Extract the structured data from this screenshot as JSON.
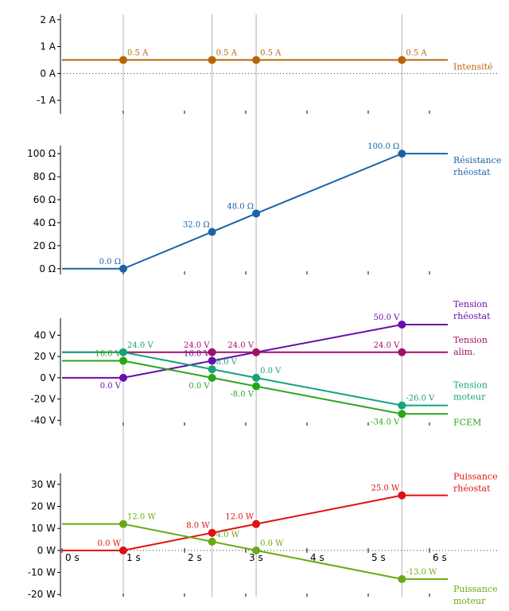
{
  "chart_data": [
    {
      "type": "line",
      "title": "",
      "xlabel": "",
      "ylabel": "",
      "ylim": [
        -1.5,
        2.2
      ],
      "yticks": [
        {
          "v": 2,
          "t": "2 A"
        },
        {
          "v": 1,
          "t": "1 A"
        },
        {
          "v": 0,
          "t": "0 A"
        },
        {
          "v": -1,
          "t": "-1 A"
        }
      ],
      "grid_y_zero": true,
      "series": [
        {
          "name_lines": [
            "Intensité"
          ],
          "color": "#b8650a",
          "x": [
            0,
            1,
            2.45,
            3.17,
            5.55,
            6.3
          ],
          "y": [
            0.5,
            0.5,
            0.5,
            0.5,
            0.5,
            0.5
          ],
          "points": [
            1,
            2,
            3,
            4
          ],
          "labels": [
            {
              "i": 1,
              "text": "0.5 A",
              "pos": "ar"
            },
            {
              "i": 2,
              "text": "0.5 A",
              "pos": "ar"
            },
            {
              "i": 3,
              "text": "0.5 A",
              "pos": "ar"
            },
            {
              "i": 4,
              "text": "0.5 A",
              "pos": "ar"
            }
          ]
        }
      ]
    },
    {
      "type": "line",
      "title": "",
      "xlabel": "",
      "ylabel": "",
      "ylim": [
        -5,
        107
      ],
      "yticks": [
        {
          "v": 100,
          "t": "100 Ω"
        },
        {
          "v": 80,
          "t": "80 Ω"
        },
        {
          "v": 60,
          "t": "60 Ω"
        },
        {
          "v": 40,
          "t": "40 Ω"
        },
        {
          "v": 20,
          "t": "20 Ω"
        },
        {
          "v": 0,
          "t": "0 Ω"
        }
      ],
      "grid_y_zero": false,
      "series": [
        {
          "name_lines": [
            "Résistance",
            "rhéostat"
          ],
          "color": "#1a63a8",
          "x": [
            0,
            1,
            2.45,
            3.17,
            5.55,
            6.3
          ],
          "y": [
            0,
            0,
            32,
            48,
            100,
            100
          ],
          "points": [
            1,
            2,
            3,
            4
          ],
          "labels": [
            {
              "i": 1,
              "text": "0.0 Ω",
              "pos": "al"
            },
            {
              "i": 2,
              "text": "32.0 Ω",
              "pos": "al"
            },
            {
              "i": 3,
              "text": "48.0 Ω",
              "pos": "al"
            },
            {
              "i": 4,
              "text": "100.0 Ω",
              "pos": "al"
            }
          ]
        }
      ]
    },
    {
      "type": "line",
      "title": "",
      "xlabel": "",
      "ylabel": "",
      "ylim": [
        -45,
        56
      ],
      "yticks": [
        {
          "v": 40,
          "t": "40 V"
        },
        {
          "v": 20,
          "t": "20 V"
        },
        {
          "v": 0,
          "t": "0 V"
        },
        {
          "v": -20,
          "t": "-20 V"
        },
        {
          "v": -40,
          "t": "-40 V"
        }
      ],
      "grid_y_zero": false,
      "series": [
        {
          "name_lines": [
            "Tension",
            "rhéostat"
          ],
          "color": "#6a0dad",
          "x": [
            0,
            1,
            2.45,
            3.17,
            5.55,
            6.3
          ],
          "y": [
            0,
            0,
            16,
            24,
            50,
            50
          ],
          "points": [
            1,
            2,
            4
          ],
          "labels": [
            {
              "i": 1,
              "text": "0.0 V",
              "pos": "bl"
            },
            {
              "i": 2,
              "text": "16.0 V",
              "pos": "al"
            },
            {
              "i": 4,
              "text": "50.0 V",
              "pos": "al"
            }
          ]
        },
        {
          "name_lines": [
            "Tension",
            "alim."
          ],
          "color": "#a0106a",
          "x": [
            0,
            1,
            2.45,
            3.17,
            5.55,
            6.3
          ],
          "y": [
            24,
            24,
            24,
            24,
            24,
            24
          ],
          "points": [
            2,
            3,
            4
          ],
          "labels": [
            {
              "i": 2,
              "text": "24.0 V",
              "pos": "al"
            },
            {
              "i": 3,
              "text": "24.0 V",
              "pos": "al"
            },
            {
              "i": 4,
              "text": "24.0 V",
              "pos": "al"
            }
          ]
        },
        {
          "name_lines": [
            "Tension",
            "moteur"
          ],
          "color": "#16a37a",
          "x": [
            0,
            1,
            2.45,
            3.17,
            5.55,
            6.3
          ],
          "y": [
            24,
            24,
            8,
            0,
            -26,
            -26
          ],
          "points": [
            1,
            2,
            3,
            4
          ],
          "labels": [
            {
              "i": 1,
              "text": "24.0 V",
              "pos": "ar"
            },
            {
              "i": 2,
              "text": "8.0 V",
              "pos": "ar"
            },
            {
              "i": 3,
              "text": "0.0 V",
              "pos": "ar"
            },
            {
              "i": 4,
              "text": "-26.0 V",
              "pos": "ar"
            }
          ]
        },
        {
          "name_lines": [
            "FCEM"
          ],
          "color": "#2aa51a",
          "x": [
            0,
            1,
            2.45,
            3.17,
            5.55,
            6.3
          ],
          "y": [
            16,
            16,
            0,
            -8,
            -34,
            -34
          ],
          "points": [
            1,
            2,
            3,
            4
          ],
          "labels": [
            {
              "i": 1,
              "text": "16.0 V",
              "pos": "al"
            },
            {
              "i": 2,
              "text": "0.0 V",
              "pos": "bl"
            },
            {
              "i": 3,
              "text": "-8.0 V",
              "pos": "bl"
            },
            {
              "i": 4,
              "text": "-34.0 V",
              "pos": "bl"
            }
          ]
        }
      ]
    },
    {
      "type": "line",
      "title": "",
      "xlabel": "",
      "ylabel": "",
      "ylim": [
        -21,
        35
      ],
      "yticks": [
        {
          "v": 30,
          "t": "30 W"
        },
        {
          "v": 20,
          "t": "20 W"
        },
        {
          "v": 10,
          "t": "10 W"
        },
        {
          "v": 0,
          "t": "0 W"
        },
        {
          "v": -10,
          "t": "-10 W"
        },
        {
          "v": -20,
          "t": "-20 W"
        }
      ],
      "grid_y_zero": true,
      "x_axis_labels": true,
      "series": [
        {
          "name_lines": [
            "Puissance",
            "rhéostat"
          ],
          "color": "#e01010",
          "x": [
            0,
            1,
            2.45,
            3.17,
            5.55,
            6.3
          ],
          "y": [
            0,
            0,
            8,
            12,
            25,
            25
          ],
          "points": [
            1,
            2,
            3,
            4
          ],
          "labels": [
            {
              "i": 1,
              "text": "0.0 W",
              "pos": "al"
            },
            {
              "i": 2,
              "text": "8.0 W",
              "pos": "al"
            },
            {
              "i": 3,
              "text": "12.0 W",
              "pos": "al"
            },
            {
              "i": 4,
              "text": "25.0 W",
              "pos": "al"
            }
          ]
        },
        {
          "name_lines": [
            "Puissance",
            "moteur"
          ],
          "color": "#6aaa10",
          "x": [
            0,
            1,
            2.45,
            3.17,
            5.55,
            6.3
          ],
          "y": [
            12,
            12,
            4,
            0,
            -13,
            -13
          ],
          "points": [
            1,
            2,
            3,
            4
          ],
          "labels": [
            {
              "i": 1,
              "text": "12.0 W",
              "pos": "ar"
            },
            {
              "i": 2,
              "text": "4.0 W",
              "pos": "ar"
            },
            {
              "i": 3,
              "text": "0.0 W",
              "pos": "ar"
            },
            {
              "i": 4,
              "text": "-13.0 W",
              "pos": "ar"
            }
          ]
        }
      ]
    }
  ],
  "x_axis": {
    "xlim": [
      0,
      7
    ],
    "ticks": [
      {
        "v": 0,
        "t": "0 s"
      },
      {
        "v": 1,
        "t": "1 s"
      },
      {
        "v": 2,
        "t": "2 s"
      },
      {
        "v": 3,
        "t": "3 s"
      },
      {
        "v": 4,
        "t": "4 s"
      },
      {
        "v": 5,
        "t": "5 s"
      },
      {
        "v": 6,
        "t": "6 s"
      }
    ],
    "event_times": [
      1,
      2.45,
      3.17,
      5.55
    ],
    "grid_color": "#b4b4b4"
  }
}
